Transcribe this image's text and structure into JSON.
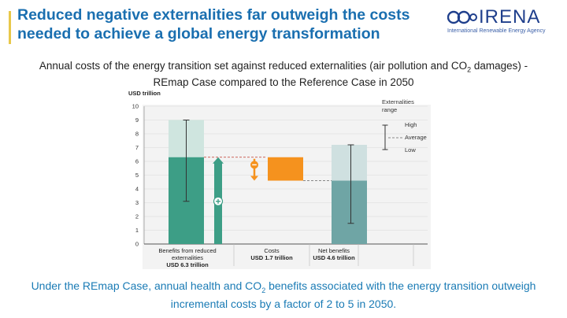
{
  "header": {
    "title": "Reduced negative externalities far outweigh the costs needed to achieve a global energy transformation",
    "logo": {
      "word": "IRENA",
      "subtitle": "International Renewable Energy Agency"
    }
  },
  "subtitle": {
    "part1": "Annual costs of the energy transition set against reduced externalities (air pollution and CO",
    "sub": "2",
    "part2": " damages) - REmap Case compared to the Reference Case in 2050"
  },
  "footer": {
    "part1": "Under the REmap Case, annual health and CO",
    "sub": "2",
    "part2": " benefits associated with the energy transition outweigh incremental costs by a factor of 2 to 5 in 2050."
  },
  "colors": {
    "title": "#1a6fb0",
    "benefits": "#3d9e86",
    "benefits_light": "#cfe5df",
    "costs": "#f5921e",
    "net": "#6fa5a5",
    "net_light": "#cfe0e0",
    "footer": "#1a7bb5"
  },
  "chart_data": {
    "type": "bar",
    "ylabel": "USD trillion",
    "ylim": [
      0,
      10
    ],
    "yticks": [
      0,
      1,
      2,
      3,
      4,
      5,
      6,
      7,
      8,
      9,
      10
    ],
    "grid": true,
    "categories": [
      {
        "label": "Benefits from reduced externalities",
        "value_label": "USD 6.3 trillion"
      },
      {
        "label": "Costs",
        "value_label": "USD 1.7 trillion"
      },
      {
        "label": "Net benefits",
        "value_label": "USD 4.6 trillion"
      }
    ],
    "bars": [
      {
        "kind": "benefit",
        "base": 0,
        "value": 6.3,
        "low": 3.1,
        "high": 9.0
      },
      {
        "kind": "cost",
        "from": 6.3,
        "to": 4.6,
        "value": 1.7
      },
      {
        "kind": "net",
        "base": 0,
        "value": 4.6,
        "low": 1.5,
        "high": 7.2
      }
    ],
    "legend": {
      "title": "Externalities range",
      "high": "High",
      "average": "Average",
      "low": "Low",
      "placement": "top-right"
    }
  }
}
